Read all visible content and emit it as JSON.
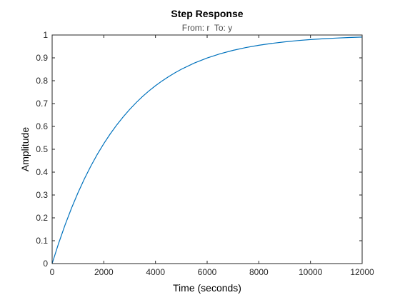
{
  "chart_data": {
    "type": "line",
    "title": "Step Response",
    "subtitle": "From: r  To: y",
    "xlabel": "Time (seconds)",
    "ylabel": "Amplitude",
    "xlim": [
      0,
      12000
    ],
    "ylim": [
      0,
      1
    ],
    "xticks": [
      0,
      2000,
      4000,
      6000,
      8000,
      10000,
      12000
    ],
    "xtick_labels": [
      "0",
      "2000",
      "4000",
      "6000",
      "8000",
      "10000",
      "12000"
    ],
    "yticks": [
      0,
      0.1,
      0.2,
      0.3,
      0.4,
      0.5,
      0.6,
      0.7,
      0.8,
      0.9,
      1
    ],
    "ytick_labels": [
      "0",
      "0.1",
      "0.2",
      "0.3",
      "0.4",
      "0.5",
      "0.6",
      "0.7",
      "0.8",
      "0.9",
      "1"
    ],
    "grid": false,
    "box": true,
    "line_color": "#0072bd",
    "axis_color": "#262626",
    "series": [
      {
        "x": [
          0,
          250,
          500,
          750,
          1000,
          1250,
          1500,
          1750,
          2000,
          2250,
          2500,
          2750,
          3000,
          3250,
          3500,
          3750,
          4000,
          4250,
          4500,
          4750,
          5000,
          5500,
          6000,
          6500,
          7000,
          7500,
          8000,
          8500,
          9000,
          9500,
          10000,
          10500,
          11000,
          11500,
          12000
        ],
        "values": [
          0,
          0.0883,
          0.1689,
          0.2425,
          0.3097,
          0.371,
          0.427,
          0.4782,
          0.5249,
          0.5675,
          0.6064,
          0.6419,
          0.6743,
          0.7039,
          0.7309,
          0.7556,
          0.7781,
          0.7986,
          0.8173,
          0.8344,
          0.85,
          0.8771,
          0.8994,
          0.9178,
          0.9328,
          0.9451,
          0.9551,
          0.9633,
          0.97,
          0.9755,
          0.98,
          0.9837,
          0.9866,
          0.9891,
          0.9911
        ]
      }
    ]
  }
}
